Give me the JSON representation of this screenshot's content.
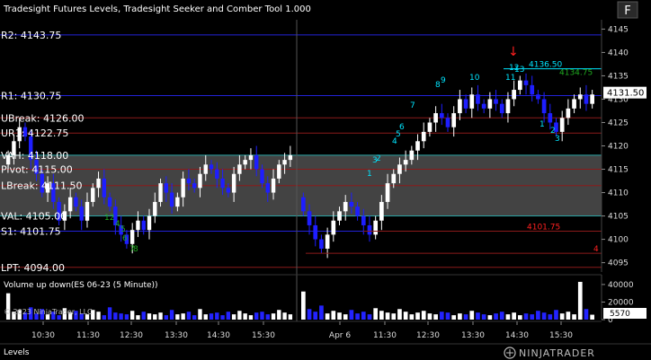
{
  "title": "Tradesight Futures Levels, Tradesight Seeker and Comber Tool 1.000",
  "f_button": "F",
  "panel_tab": "Levels",
  "copyright": "© 2023 NinjaTrader, LLC",
  "logo_text": "NINJATRADER",
  "volume_title": "Volume up down(ES 06-23 (5 Minute))",
  "volume_current": "5570",
  "price_current": "4131.50",
  "colors": {
    "up_candle": "#ffffff",
    "down_candle": "#1e1eff",
    "level_blue": "#2323d8",
    "level_red": "#8b1a1a",
    "value_area": "#7a7a7a",
    "cyan": "#00e5ff",
    "green": "#1fa81f",
    "red_label": "#ff2020"
  },
  "levels": [
    {
      "label": "R2: 4143.75",
      "price": 4143.75,
      "color": "#2323d8"
    },
    {
      "label": "R1: 4130.75",
      "price": 4130.75,
      "color": "#2323d8"
    },
    {
      "label": "UBreak: 4126.00",
      "price": 4126.0,
      "color": "#8b1a1a"
    },
    {
      "label": "UR1: 4122.75",
      "price": 4122.75,
      "color": "#8b1a1a"
    },
    {
      "label": "VAH: 4118.00",
      "price": 4118.0,
      "color": "#2aa5a5"
    },
    {
      "label": "Pivot: 4115.00",
      "price": 4115.0,
      "color": "#8b1a1a"
    },
    {
      "label": "LBreak: 4111.50",
      "price": 4111.5,
      "color": "#8b1a1a"
    },
    {
      "label": "VAL: 4105.00",
      "price": 4105.0,
      "color": "#2aa5a5"
    },
    {
      "label": "S1: 4101.75",
      "price": 4101.75,
      "color": "#2323d8"
    },
    {
      "label": "LPT: 4094.00",
      "price": 4094.0,
      "color": "#8b1a1a"
    }
  ],
  "right_labels": [
    {
      "text": "4136.50",
      "price": 4136.5,
      "color": "#00e5ff"
    },
    {
      "text": "4134.75",
      "price": 4134.75,
      "color": "#1fa81f"
    },
    {
      "text": "4101.75",
      "price": 4101.75,
      "color": "#ff2020"
    },
    {
      "text": "4",
      "price": 4097.0,
      "color": "#ff2020"
    }
  ],
  "chart_data": {
    "type": "candlestick",
    "price_axis": {
      "ticks": [
        4145,
        4140,
        4135,
        4130,
        4125,
        4120,
        4115,
        4110,
        4105,
        4100,
        4095
      ],
      "range": [
        4093,
        4147
      ]
    },
    "time_axis": {
      "ticks": [
        "10:30",
        "11:30",
        "12:30",
        "13:30",
        "14:30",
        "15:30",
        "Apr 6",
        "11:30",
        "12:30",
        "13:30",
        "14:30",
        "15:30"
      ]
    },
    "volume_axis": {
      "ticks": [
        "40000",
        "20000",
        "0"
      ],
      "range": [
        0,
        45000
      ]
    },
    "sessions": [
      [
        4118,
        4121,
        4124,
        4122,
        4117,
        4114,
        4110,
        4112,
        4108,
        4104,
        4106,
        4109,
        4107,
        4104,
        4108,
        4111,
        4113,
        4109,
        4107,
        4103,
        4101,
        4099,
        4102,
        4104,
        4102,
        4105,
        4108,
        4112,
        4110,
        4107,
        4109,
        4113,
        4112,
        4111,
        4114,
        4116,
        4115,
        4113,
        4111,
        4110,
        4114,
        4116,
        4117,
        4118,
        4115,
        4112,
        4110,
        4113,
        4116,
        4117,
        4118
      ],
      [
        4106,
        4103,
        4100,
        4098,
        4101,
        4104,
        4106,
        4108,
        4107,
        4105,
        4103,
        4101,
        4104,
        4108,
        4112,
        4114,
        4116,
        4117,
        4119,
        4121,
        4123,
        4125,
        4127,
        4126,
        4124,
        4127,
        4130,
        4128,
        4131,
        4129,
        4128,
        4130,
        4129,
        4127,
        4130,
        4132,
        4134,
        4133,
        4131,
        4130,
        4127,
        4125,
        4123,
        4126,
        4128,
        4130,
        4131,
        4129,
        4131
      ]
    ],
    "volume": [
      [
        30000,
        9000,
        11000,
        8000,
        14000,
        7000,
        12000,
        6000,
        9000,
        5000,
        13000,
        8000,
        10000,
        7000,
        6000,
        11000,
        9000,
        5000,
        14000,
        8000,
        7000,
        6000,
        10000,
        5000,
        9000,
        7000,
        6000,
        8000,
        5000,
        11000,
        6000,
        7000,
        9000,
        5000,
        12000,
        6000,
        7000,
        8000,
        5000,
        9000,
        6000,
        10000,
        7000,
        5000,
        8000,
        9000,
        6000,
        7000,
        11000,
        8000,
        6000
      ],
      [
        32000,
        12000,
        9000,
        16000,
        7000,
        10000,
        8000,
        6000,
        11000,
        7000,
        9000,
        6000,
        13000,
        10000,
        8000,
        7000,
        12000,
        9000,
        6000,
        8000,
        10000,
        7000,
        6000,
        9000,
        8000,
        5000,
        7000,
        6000,
        10000,
        8000,
        6000,
        5000,
        7000,
        9000,
        6000,
        8000,
        5000,
        7000,
        6000,
        10000,
        8000,
        6000,
        11000,
        7000,
        9000,
        6000,
        43000,
        12000,
        5570
      ]
    ]
  },
  "markers": {
    "cyan": [
      "8",
      "9",
      "10",
      "7",
      "6",
      "5",
      "4",
      "3",
      "2",
      "1",
      "11",
      "12",
      "13",
      "1",
      "2",
      "3"
    ],
    "green": [
      "12",
      "4",
      "5",
      "6",
      "7",
      "8"
    ],
    "red_arrow": "↓"
  }
}
